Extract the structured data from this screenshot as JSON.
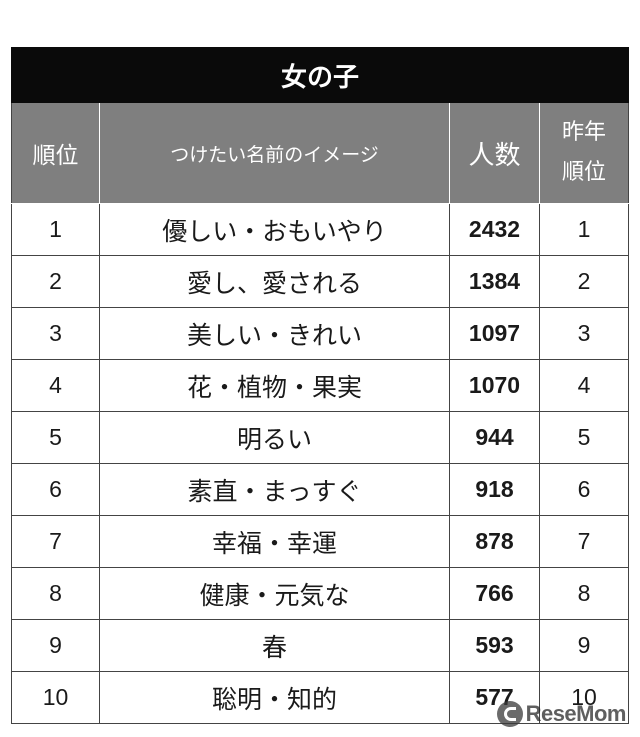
{
  "title": "女の子",
  "headers": {
    "rank": "順位",
    "image": "つけたい名前のイメージ",
    "count": "人数",
    "prev_line1": "昨年",
    "prev_line2": "順位"
  },
  "rows": [
    {
      "rank": "1",
      "image": "優しい・おもいやり",
      "count": "2432",
      "prev": "1"
    },
    {
      "rank": "2",
      "image": "愛し、愛される",
      "count": "1384",
      "prev": "2"
    },
    {
      "rank": "3",
      "image": "美しい・きれい",
      "count": "1097",
      "prev": "3"
    },
    {
      "rank": "4",
      "image": "花・植物・果実",
      "count": "1070",
      "prev": "4"
    },
    {
      "rank": "5",
      "image": "明るい",
      "count": "944",
      "prev": "5"
    },
    {
      "rank": "6",
      "image": "素直・まっすぐ",
      "count": "918",
      "prev": "6"
    },
    {
      "rank": "7",
      "image": "幸福・幸運",
      "count": "878",
      "prev": "7"
    },
    {
      "rank": "8",
      "image": "健康・元気な",
      "count": "766",
      "prev": "8"
    },
    {
      "rank": "9",
      "image": "春",
      "count": "593",
      "prev": "9"
    },
    {
      "rank": "10",
      "image": "聡明・知的",
      "count": "577",
      "prev": "10"
    }
  ],
  "logo": {
    "text": "ReseMom",
    "icon": "resemom-logo-mark"
  }
}
